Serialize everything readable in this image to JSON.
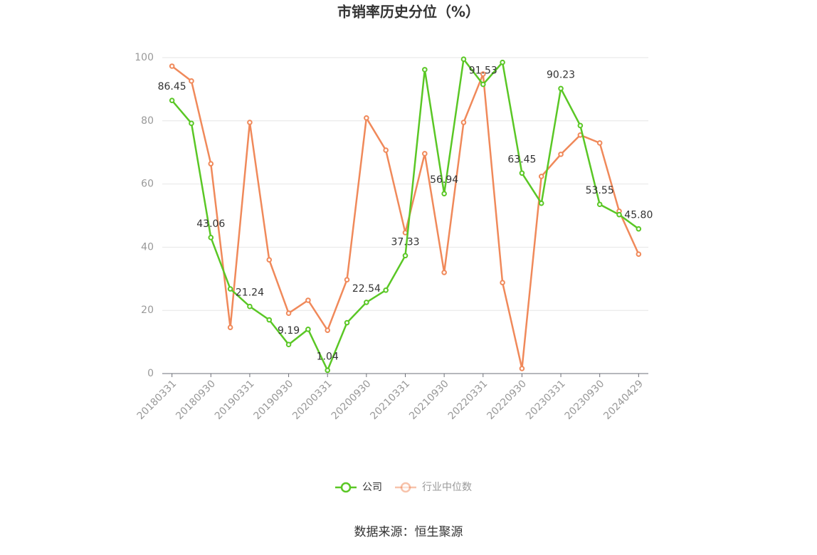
{
  "chart_data": {
    "type": "line",
    "title": "市销率历史分位（%）",
    "categories": [
      "20180331",
      null,
      "20180930",
      null,
      "20190331",
      null,
      "20190930",
      null,
      "20200331",
      null,
      "20200930",
      null,
      "20210331",
      null,
      "20210930",
      null,
      "20220331",
      null,
      "20220930",
      null,
      "20230331",
      null,
      "20230930",
      null,
      "20240429"
    ],
    "series": [
      {
        "name": "公司",
        "color": "#5ac725",
        "values": [
          86.45,
          79.2,
          43.06,
          26.8,
          21.24,
          17.0,
          9.19,
          14.0,
          1.04,
          16.1,
          22.54,
          26.4,
          37.33,
          96.2,
          56.94,
          99.5,
          91.53,
          98.5,
          63.45,
          53.9,
          90.23,
          78.5,
          53.55,
          50.3,
          45.8
        ],
        "value_labels": [
          "86.45",
          null,
          "43.06",
          null,
          "21.24",
          null,
          "9.19",
          null,
          "1.04",
          null,
          "22.54",
          null,
          "37.33",
          null,
          "56.94",
          null,
          "91.53",
          null,
          "63.45",
          null,
          "90.23",
          null,
          "53.55",
          null,
          "45.80"
        ]
      },
      {
        "name": "行业中位数",
        "color": "#f0895a",
        "values": [
          97.3,
          92.6,
          66.4,
          14.6,
          79.5,
          36.0,
          19.1,
          23.2,
          13.7,
          29.7,
          80.9,
          70.7,
          44.6,
          69.6,
          32.0,
          79.5,
          94.8,
          28.8,
          1.6,
          62.4,
          69.4,
          75.5,
          73.0,
          51.4,
          37.8
        ]
      }
    ],
    "ylim": [
      0,
      100
    ],
    "yticks": [
      0,
      20,
      40,
      60,
      80,
      100
    ],
    "grid": true,
    "source": "数据来源：恒生聚源"
  }
}
